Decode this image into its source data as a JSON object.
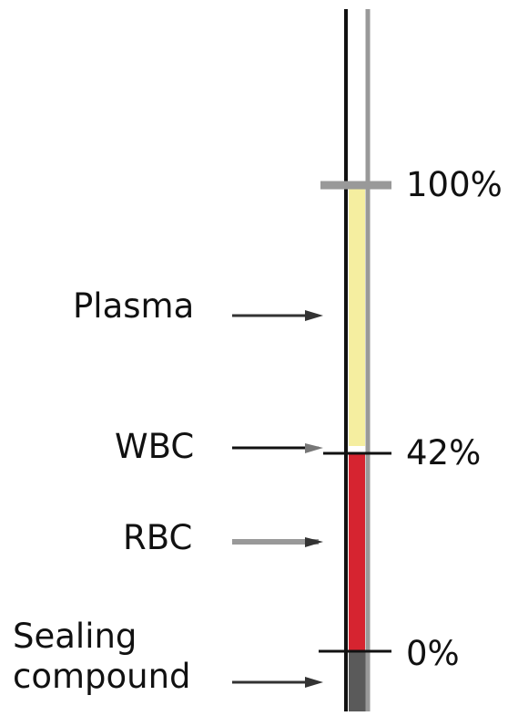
{
  "labels": {
    "plasma": "Plasma",
    "wbc": "WBC",
    "rbc": "RBC",
    "sealing": "Sealing compound"
  },
  "scale": {
    "top": "100%",
    "middle": "42%",
    "bottom": "0%"
  }
}
